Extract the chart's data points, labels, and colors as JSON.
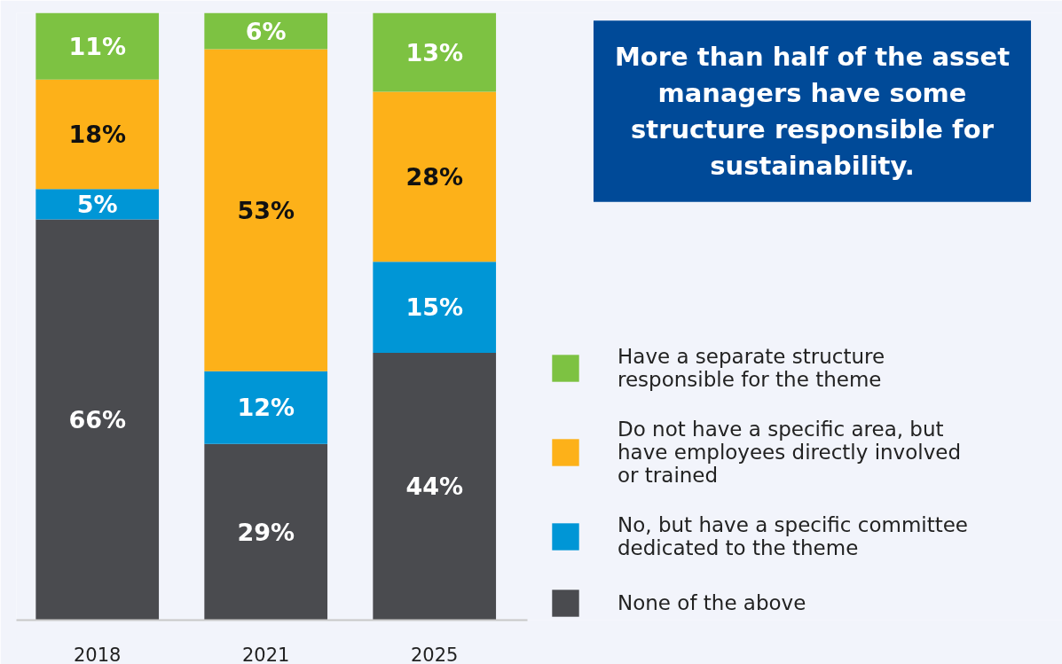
{
  "chart_data": {
    "type": "bar",
    "stacked": true,
    "title": "More than half of the asset managers have some structure responsible for sustainability.",
    "categories": [
      "2018",
      "2021",
      "2025"
    ],
    "series": [
      {
        "name": "None of the above",
        "color": "#4a4b4f",
        "values": [
          66,
          29,
          44
        ],
        "value_labels": [
          "66%",
          "29%",
          "44%"
        ]
      },
      {
        "name": "No, but have a specific committee dedicated to the theme",
        "color": "#0096d6",
        "values": [
          5,
          12,
          15
        ],
        "value_labels": [
          "5%",
          "12%",
          "15%"
        ]
      },
      {
        "name": "Do not have a specific area, but have employees directly involved or trained",
        "color": "#fdb119",
        "values": [
          18,
          53,
          28
        ],
        "value_labels": [
          "18%",
          "53%",
          "28%"
        ]
      },
      {
        "name": "Have a separate structure responsible for the theme",
        "color": "#7dc242",
        "values": [
          11,
          6,
          13
        ],
        "value_labels": [
          "11%",
          "6%",
          "13%"
        ]
      }
    ],
    "legend": "right",
    "grid": false
  }
}
